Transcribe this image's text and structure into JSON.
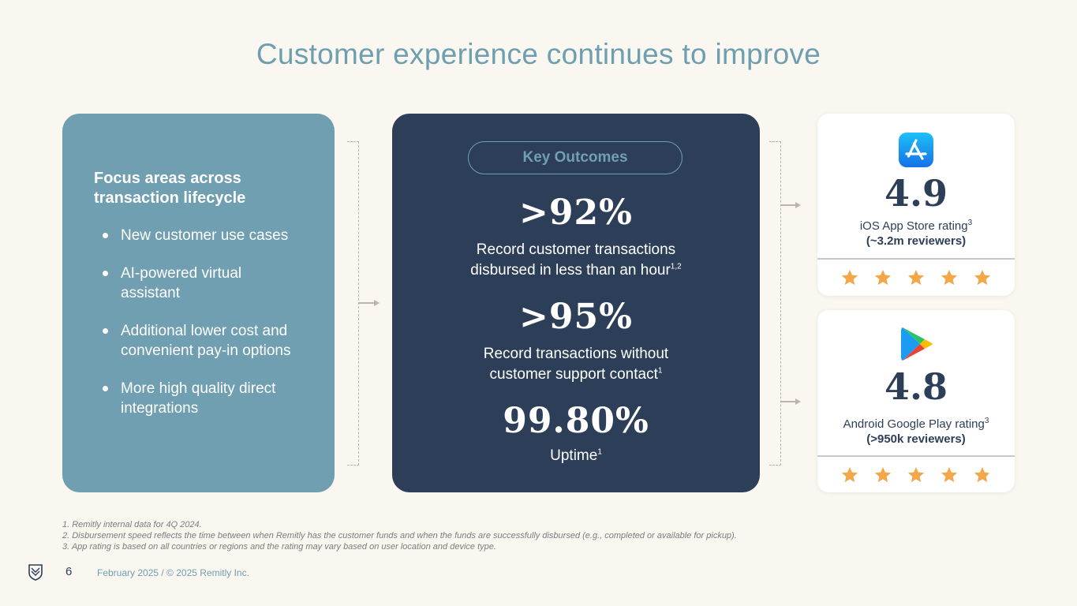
{
  "title": "Customer experience continues to improve",
  "focus": {
    "heading": "Focus areas across transaction lifecycle",
    "items": [
      "New customer use cases",
      "AI-powered virtual assistant",
      "Additional lower cost and convenient pay-in options",
      "More high quality direct integrations"
    ]
  },
  "outcomes": {
    "pill": "Key Outcomes",
    "metrics": [
      {
        "value": ">92%",
        "text": "Record customer transactions disbursed in less than an hour",
        "sup": "1,2"
      },
      {
        "value": ">95%",
        "text": "Record transactions without customer support contact",
        "sup": "1"
      },
      {
        "value": "99.80%",
        "text": "Uptime",
        "sup": "1"
      }
    ]
  },
  "ratings": [
    {
      "icon": "app-store-icon",
      "rating": "4.9",
      "label": "iOS App Store rating",
      "sup": "3",
      "sub": "(~3.2m reviewers)",
      "stars": 4.9
    },
    {
      "icon": "google-play-icon",
      "rating": "4.8",
      "label": "Android Google Play rating",
      "sup": "3",
      "sub": "(>950k reviewers)",
      "stars": 4.8
    }
  ],
  "colors": {
    "star": "#f4a748",
    "star_empty": "#d9d9d9",
    "navy": "#2d3f58",
    "teal": "#6f9fb0"
  },
  "footnotes": [
    "1. Remitly internal data for 4Q 2024.",
    "2. Disbursement speed reflects the time between when Remitly has the customer funds and when the funds are successfully disbursed (e.g., completed or available for pickup).",
    "3. App rating is based on all countries or regions and the rating may vary based on user location and device type."
  ],
  "footer": {
    "page": "6",
    "date": "February 2025 / © 2025 Remitly Inc."
  }
}
